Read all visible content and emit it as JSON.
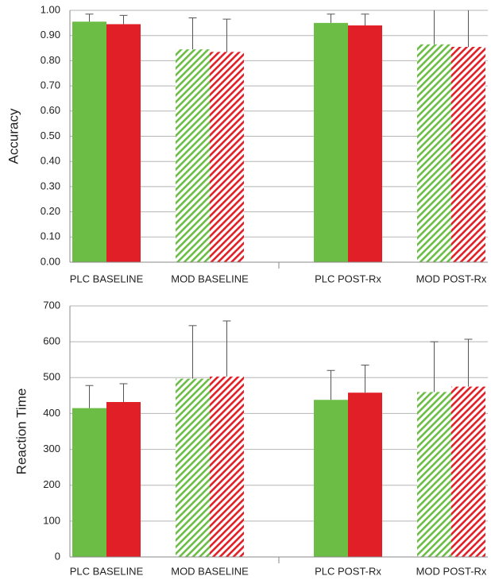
{
  "chart_data": [
    {
      "type": "bar",
      "y_label": "Accuracy",
      "categories": [
        "PLC BASELINE",
        "MOD BASELINE",
        "PLC POST-Rx",
        "MOD POST-Rx"
      ],
      "hatched": [
        false,
        true,
        false,
        true
      ],
      "series": [
        {
          "color": "#6cbd45",
          "values": [
            0.955,
            0.845,
            0.95,
            0.865
          ],
          "errors": [
            0.03,
            0.125,
            0.035,
            0.14
          ]
        },
        {
          "color": "#e11f27",
          "values": [
            0.945,
            0.835,
            0.94,
            0.855
          ],
          "errors": [
            0.035,
            0.13,
            0.045,
            0.15
          ]
        }
      ],
      "ylim": [
        0,
        1
      ],
      "yticks": [
        {
          "value": 0,
          "label": "0.00"
        },
        {
          "value": 0.1,
          "label": "0.10"
        },
        {
          "value": 0.2,
          "label": "0.20"
        },
        {
          "value": 0.3,
          "label": "0.30"
        },
        {
          "value": 0.4,
          "label": "0.40"
        },
        {
          "value": 0.5,
          "label": "0.50"
        },
        {
          "value": 0.6,
          "label": "0.60"
        },
        {
          "value": 0.7,
          "label": "0.70"
        },
        {
          "value": 0.8,
          "label": "0.80"
        },
        {
          "value": 0.9,
          "label": "0.90"
        },
        {
          "value": 1,
          "label": "1.00"
        }
      ],
      "grid": true
    },
    {
      "type": "bar",
      "y_label": "Reaction Time",
      "categories": [
        "PLC BASELINE",
        "MOD BASELINE",
        "PLC POST-Rx",
        "MOD POST-Rx"
      ],
      "hatched": [
        false,
        true,
        false,
        true
      ],
      "series": [
        {
          "color": "#6cbd45",
          "values": [
            415,
            497,
            438,
            460
          ],
          "errors": [
            63,
            148,
            82,
            140
          ]
        },
        {
          "color": "#e11f27",
          "values": [
            432,
            503,
            458,
            475
          ],
          "errors": [
            51,
            155,
            77,
            132
          ]
        }
      ],
      "ylim": [
        0,
        700
      ],
      "yticks": [
        0,
        100,
        200,
        300,
        400,
        500,
        600,
        700
      ],
      "grid": true
    }
  ]
}
